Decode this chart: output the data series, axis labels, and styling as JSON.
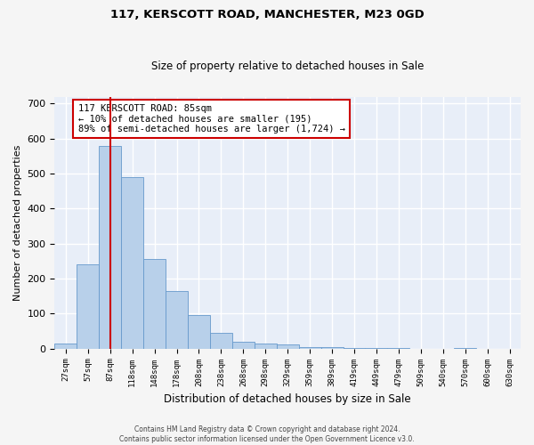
{
  "title1": "117, KERSCOTT ROAD, MANCHESTER, M23 0GD",
  "title2": "Size of property relative to detached houses in Sale",
  "xlabel": "Distribution of detached houses by size in Sale",
  "ylabel": "Number of detached properties",
  "bar_labels": [
    "27sqm",
    "57sqm",
    "87sqm",
    "118sqm",
    "148sqm",
    "178sqm",
    "208sqm",
    "238sqm",
    "268sqm",
    "298sqm",
    "329sqm",
    "359sqm",
    "389sqm",
    "419sqm",
    "449sqm",
    "479sqm",
    "509sqm",
    "540sqm",
    "570sqm",
    "600sqm",
    "630sqm"
  ],
  "bar_values": [
    15,
    240,
    580,
    490,
    255,
    165,
    95,
    45,
    20,
    15,
    12,
    5,
    4,
    3,
    1,
    1,
    0,
    0,
    1,
    0,
    0
  ],
  "bar_color": "#b8d0ea",
  "bar_edge_color": "#6699cc",
  "background_color": "#e8eef8",
  "grid_color": "#ffffff",
  "red_line_x": 2.0,
  "annotation_text": "117 KERSCOTT ROAD: 85sqm\n← 10% of detached houses are smaller (195)\n89% of semi-detached houses are larger (1,724) →",
  "annotation_box_color": "#ffffff",
  "annotation_box_edge": "#cc0000",
  "ylim": [
    0,
    720
  ],
  "yticks": [
    0,
    100,
    200,
    300,
    400,
    500,
    600,
    700
  ],
  "footer1": "Contains HM Land Registry data © Crown copyright and database right 2024.",
  "footer2": "Contains public sector information licensed under the Open Government Licence v3.0.",
  "fig_width": 6.0,
  "fig_height": 5.0,
  "dpi": 100
}
